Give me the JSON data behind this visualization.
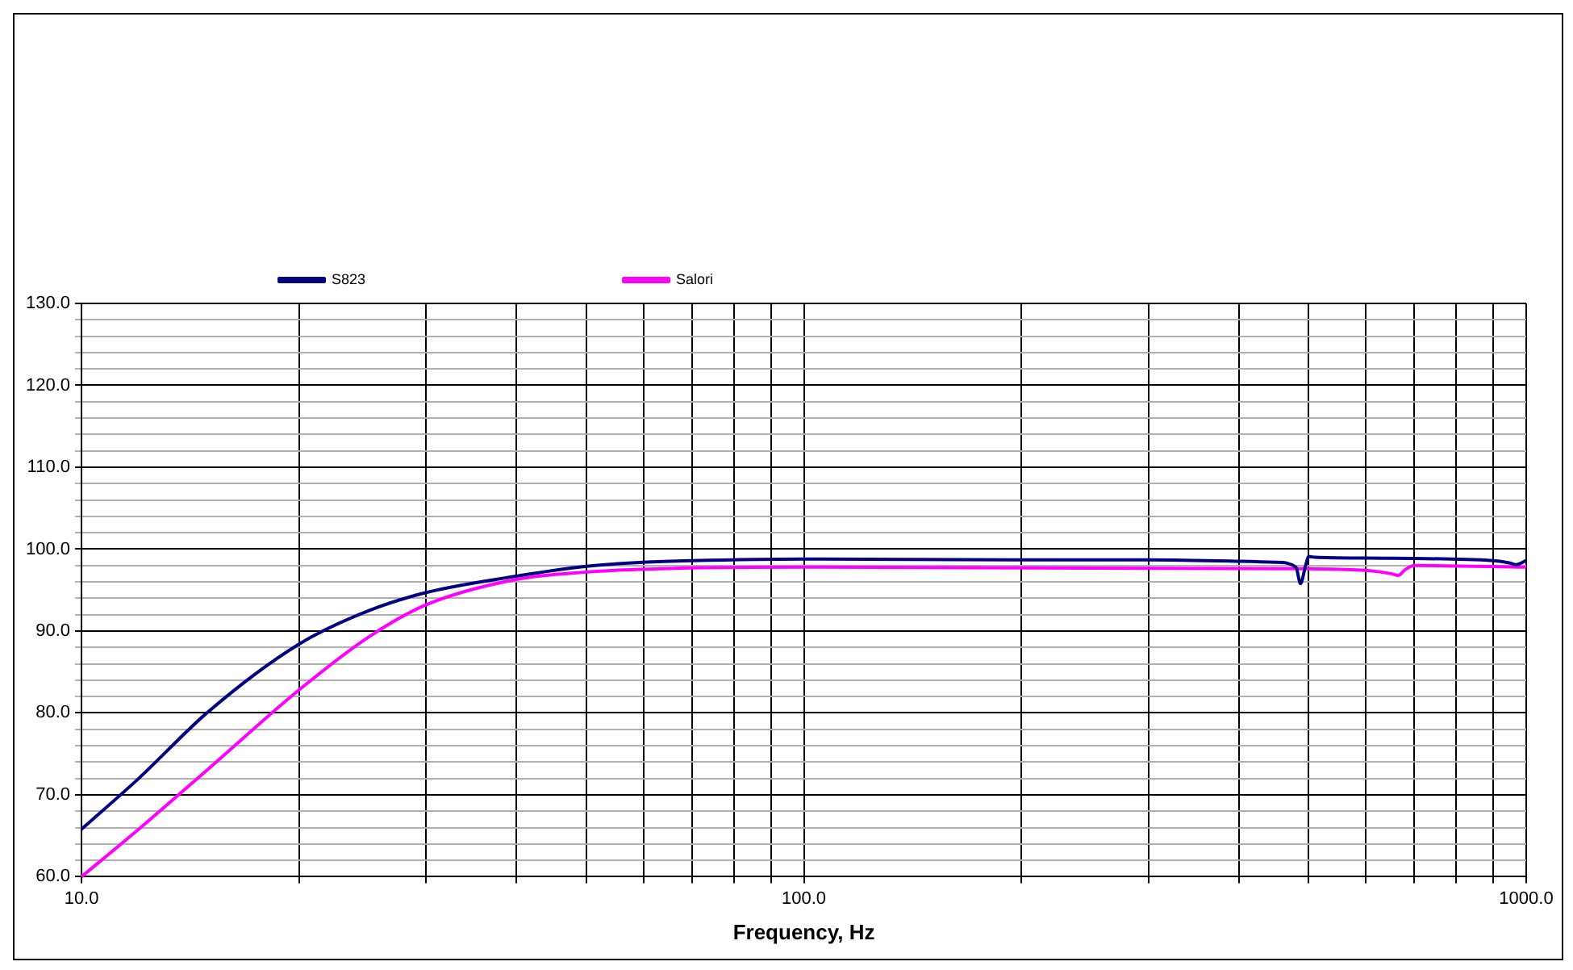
{
  "chart_data": {
    "type": "line",
    "xlabel": "Frequency, Hz",
    "log": "x",
    "grid": true,
    "legend": "top left",
    "marker": "none",
    "line_style": "solid",
    "xlim": [
      10,
      1000
    ],
    "xticks": [
      {
        "value": 10,
        "label": "10.0"
      },
      {
        "value": 20,
        "label": null
      },
      {
        "value": 30,
        "label": null
      },
      {
        "value": 40,
        "label": null
      },
      {
        "value": 50,
        "label": null
      },
      {
        "value": 60,
        "label": null
      },
      {
        "value": 70,
        "label": null
      },
      {
        "value": 80,
        "label": null
      },
      {
        "value": 90,
        "label": null
      },
      {
        "value": 100,
        "label": "100.0"
      },
      {
        "value": 200,
        "label": null
      },
      {
        "value": 300,
        "label": null
      },
      {
        "value": 400,
        "label": null
      },
      {
        "value": 500,
        "label": null
      },
      {
        "value": 600,
        "label": null
      },
      {
        "value": 700,
        "label": null
      },
      {
        "value": 800,
        "label": null
      },
      {
        "value": 900,
        "label": null
      },
      {
        "value": 1000,
        "label": "1000.0"
      }
    ],
    "ylim": [
      60,
      130
    ],
    "yticks": [
      {
        "value": 60,
        "label": "60.0"
      },
      {
        "value": 62,
        "label": null
      },
      {
        "value": 64,
        "label": null
      },
      {
        "value": 66,
        "label": null
      },
      {
        "value": 68,
        "label": null
      },
      {
        "value": 70,
        "label": "70.0"
      },
      {
        "value": 72,
        "label": null
      },
      {
        "value": 74,
        "label": null
      },
      {
        "value": 76,
        "label": null
      },
      {
        "value": 78,
        "label": null
      },
      {
        "value": 80,
        "label": "80.0"
      },
      {
        "value": 82,
        "label": null
      },
      {
        "value": 84,
        "label": null
      },
      {
        "value": 86,
        "label": null
      },
      {
        "value": 88,
        "label": null
      },
      {
        "value": 90,
        "label": "90.0"
      },
      {
        "value": 92,
        "label": null
      },
      {
        "value": 94,
        "label": null
      },
      {
        "value": 96,
        "label": null
      },
      {
        "value": 98,
        "label": null
      },
      {
        "value": 100,
        "label": "100.0"
      },
      {
        "value": 102,
        "label": null
      },
      {
        "value": 104,
        "label": null
      },
      {
        "value": 106,
        "label": null
      },
      {
        "value": 108,
        "label": null
      },
      {
        "value": 110,
        "label": "110.0"
      },
      {
        "value": 112,
        "label": null
      },
      {
        "value": 114,
        "label": null
      },
      {
        "value": 116,
        "label": null
      },
      {
        "value": 118,
        "label": null
      },
      {
        "value": 120,
        "label": "120.0"
      },
      {
        "value": 122,
        "label": null
      },
      {
        "value": 124,
        "label": null
      },
      {
        "value": 126,
        "label": null
      },
      {
        "value": 128,
        "label": null
      },
      {
        "value": 130,
        "label": "130.0"
      }
    ],
    "series": [
      {
        "name": "S823",
        "color": "#000080",
        "x": [
          10,
          12,
          15,
          20,
          25,
          30,
          40,
          50,
          60,
          70,
          100,
          200,
          300,
          450,
          480,
          487,
          495,
          500,
          510,
          600,
          900,
          950,
          967,
          1000
        ],
        "values": [
          65.8,
          72.0,
          80.2,
          88.4,
          92.5,
          94.7,
          96.7,
          97.9,
          98.4,
          98.6,
          98.8,
          98.7,
          98.7,
          98.4,
          97.8,
          95.8,
          98.0,
          99.1,
          99.0,
          98.9,
          98.6,
          98.3,
          98.1,
          98.6
        ]
      },
      {
        "name": "Salori",
        "color": "#ff00ff",
        "x": [
          10,
          12,
          15,
          20,
          25,
          30,
          40,
          50,
          70,
          100,
          500,
          600,
          650,
          665,
          680,
          700,
          1000
        ],
        "values": [
          60.0,
          65.8,
          73.2,
          82.8,
          89.3,
          93.2,
          96.3,
          97.2,
          97.7,
          97.8,
          97.6,
          97.4,
          97.0,
          96.8,
          97.5,
          98.0,
          97.8
        ]
      }
    ]
  }
}
